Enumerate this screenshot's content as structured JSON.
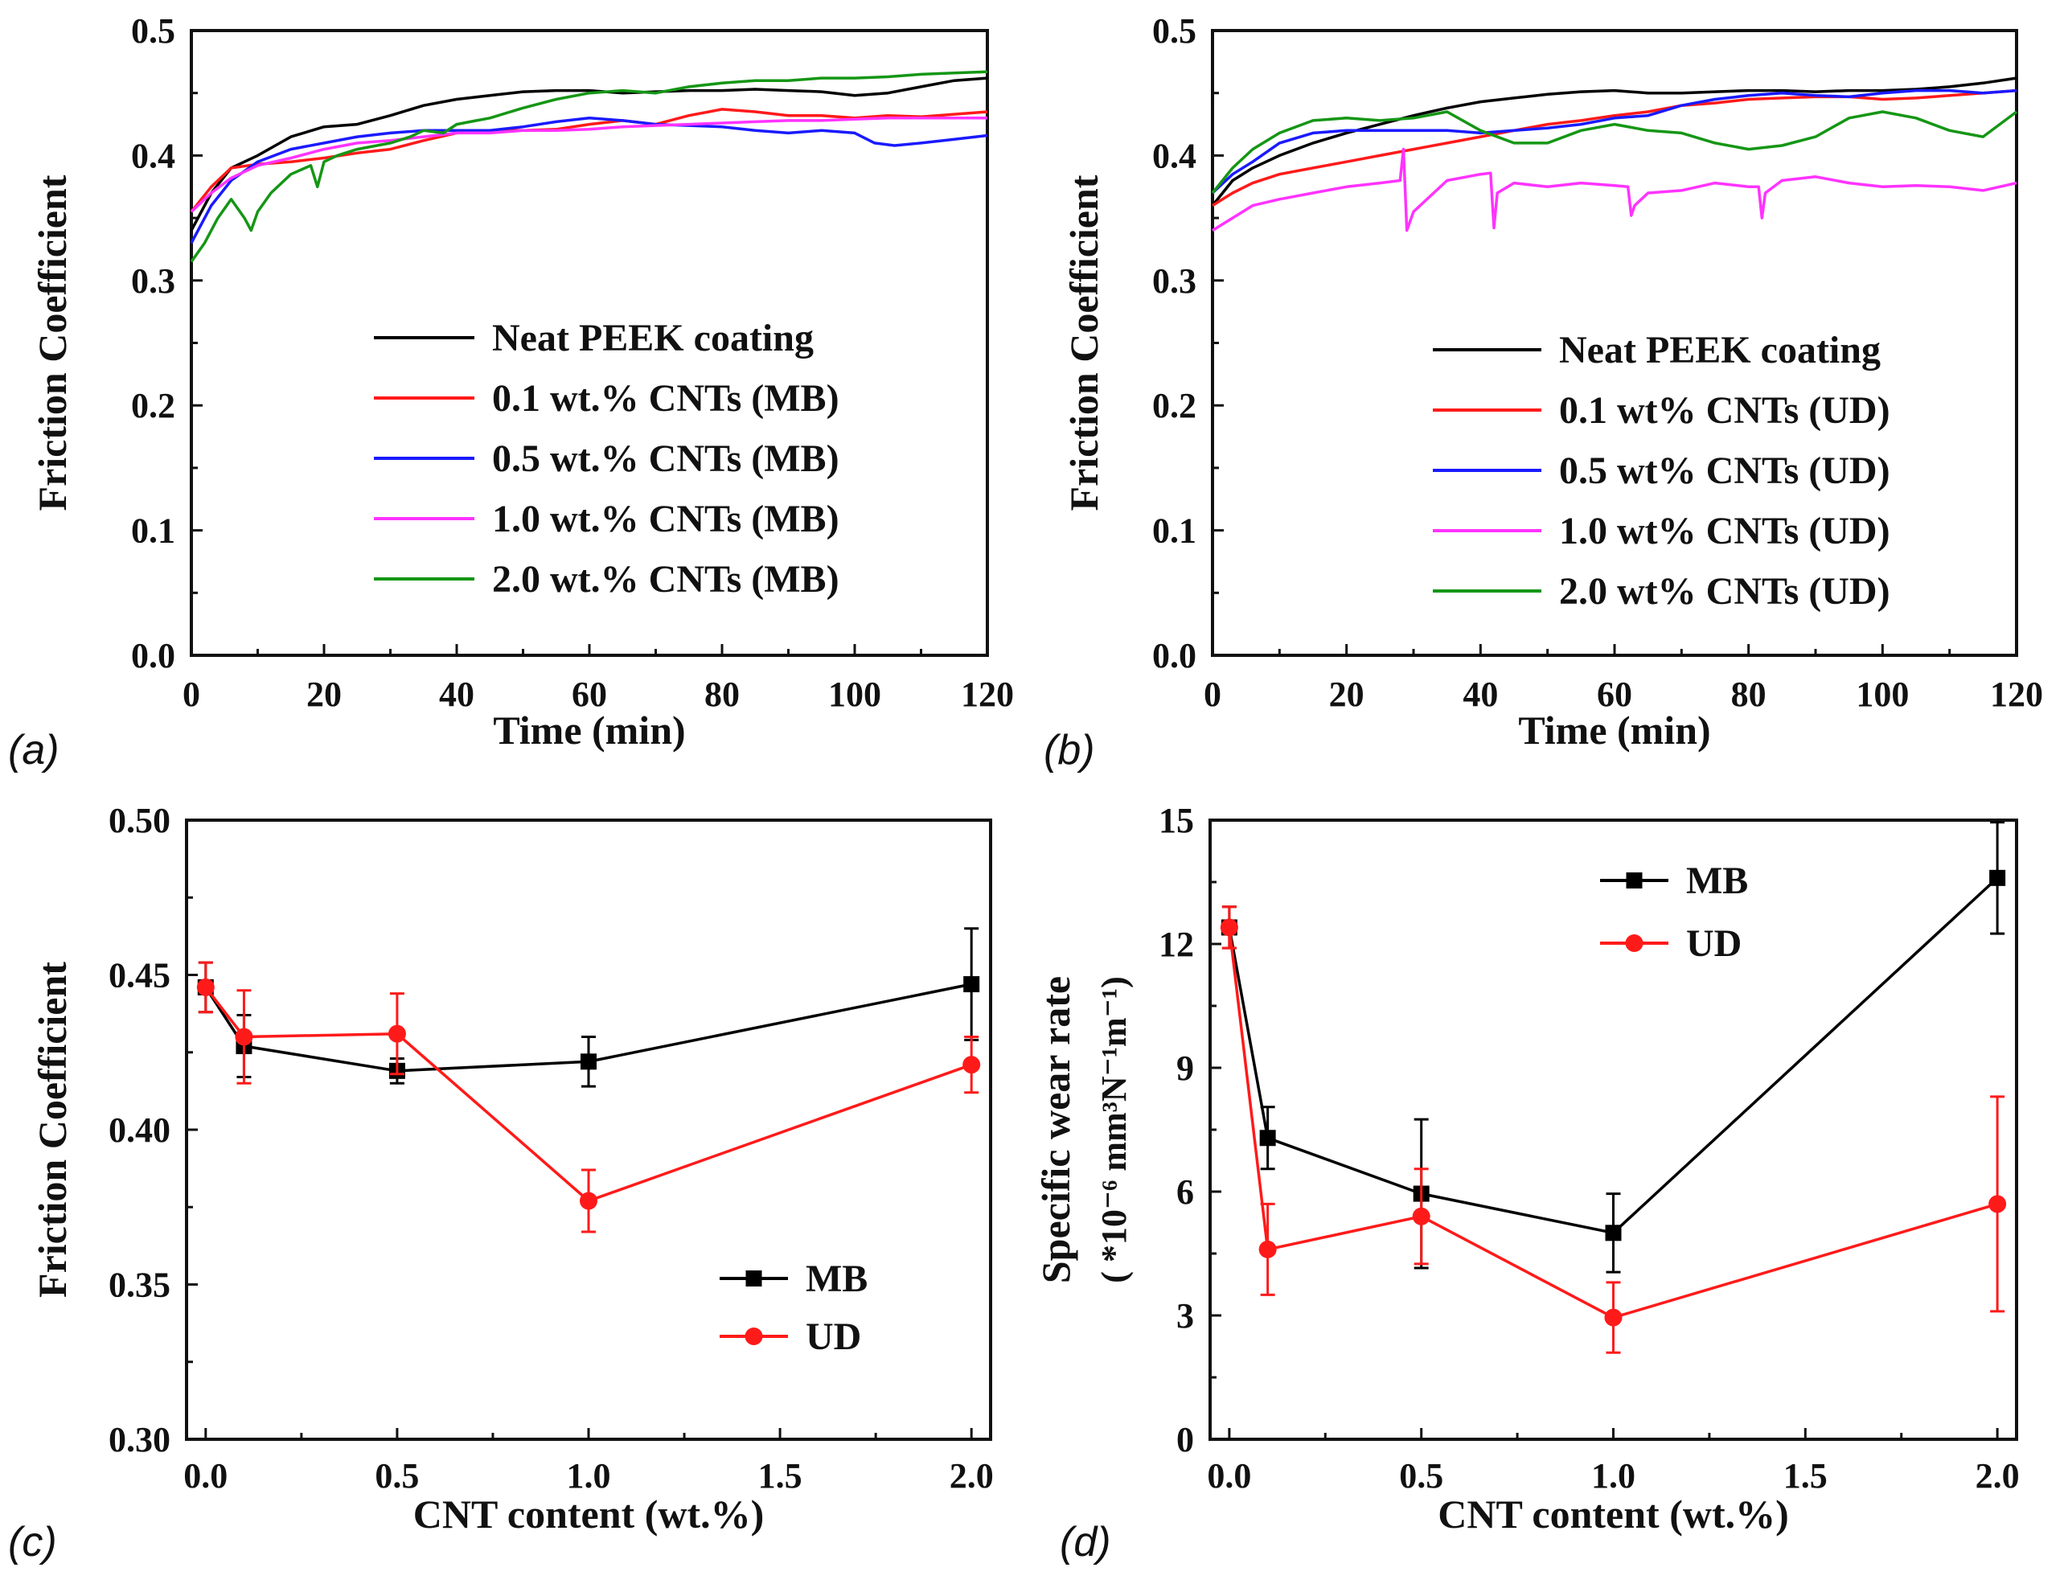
{
  "figure": {
    "panel_labels": [
      "(a)",
      "(b)",
      "(c)",
      "(d)"
    ]
  },
  "colors": {
    "black": "#000000",
    "red": "#ff1a1a",
    "blue": "#1a1aff",
    "magenta": "#ff33ff",
    "green": "#159615"
  },
  "chart_data": [
    {
      "id": "a",
      "type": "line",
      "panel_label": "(a)",
      "xlabel": "Time (min)",
      "ylabel": "Friction Coefficient",
      "xlim": [
        0,
        120
      ],
      "ylim": [
        0.0,
        0.5
      ],
      "xticks": [
        0,
        20,
        40,
        60,
        80,
        100,
        120
      ],
      "yticks": [
        "0.0",
        "0.1",
        "0.2",
        "0.3",
        "0.4",
        "0.5"
      ],
      "legend_position": "bottom-right",
      "series": [
        {
          "name": "Neat PEEK coating",
          "color": "black",
          "x": [
            0,
            3,
            6,
            10,
            15,
            20,
            25,
            30,
            35,
            40,
            45,
            50,
            55,
            60,
            65,
            70,
            75,
            80,
            85,
            90,
            95,
            100,
            105,
            110,
            115,
            120
          ],
          "y": [
            0.34,
            0.37,
            0.39,
            0.4,
            0.415,
            0.423,
            0.425,
            0.432,
            0.44,
            0.445,
            0.448,
            0.451,
            0.452,
            0.452,
            0.45,
            0.451,
            0.452,
            0.452,
            0.453,
            0.452,
            0.451,
            0.448,
            0.45,
            0.455,
            0.46,
            0.462
          ]
        },
        {
          "name": "0.1 wt.% CNTs (MB)",
          "color": "red",
          "x": [
            0,
            3,
            6,
            10,
            15,
            20,
            25,
            30,
            35,
            40,
            45,
            50,
            55,
            60,
            65,
            70,
            75,
            80,
            85,
            90,
            95,
            100,
            105,
            110,
            115,
            120
          ],
          "y": [
            0.355,
            0.375,
            0.39,
            0.393,
            0.395,
            0.398,
            0.402,
            0.405,
            0.412,
            0.418,
            0.42,
            0.42,
            0.421,
            0.425,
            0.428,
            0.425,
            0.432,
            0.437,
            0.435,
            0.432,
            0.432,
            0.43,
            0.432,
            0.431,
            0.433,
            0.435
          ]
        },
        {
          "name": "0.5 wt.% CNTs (MB)",
          "color": "blue",
          "x": [
            0,
            3,
            6,
            10,
            15,
            20,
            25,
            30,
            35,
            40,
            45,
            50,
            55,
            60,
            65,
            70,
            75,
            80,
            85,
            90,
            95,
            100,
            103,
            106,
            110,
            115,
            120
          ],
          "y": [
            0.33,
            0.36,
            0.38,
            0.395,
            0.405,
            0.41,
            0.415,
            0.418,
            0.42,
            0.42,
            0.42,
            0.423,
            0.427,
            0.43,
            0.428,
            0.425,
            0.424,
            0.423,
            0.42,
            0.418,
            0.42,
            0.418,
            0.41,
            0.408,
            0.41,
            0.413,
            0.416
          ]
        },
        {
          "name": "1.0 wt.% CNTs (MB)",
          "color": "magenta",
          "x": [
            0,
            3,
            6,
            10,
            15,
            20,
            25,
            30,
            35,
            40,
            45,
            50,
            55,
            60,
            65,
            70,
            75,
            80,
            85,
            90,
            95,
            100,
            105,
            110,
            115,
            120
          ],
          "y": [
            0.355,
            0.37,
            0.382,
            0.392,
            0.398,
            0.405,
            0.41,
            0.412,
            0.415,
            0.418,
            0.418,
            0.42,
            0.42,
            0.421,
            0.423,
            0.424,
            0.425,
            0.426,
            0.427,
            0.428,
            0.428,
            0.429,
            0.43,
            0.43,
            0.43,
            0.43
          ]
        },
        {
          "name": "2.0 wt.% CNTs (MB)",
          "color": "green",
          "x": [
            0,
            2,
            4,
            6,
            8,
            9,
            10,
            12,
            15,
            18,
            19,
            20,
            22,
            25,
            30,
            33,
            35,
            38,
            40,
            43,
            45,
            50,
            55,
            60,
            65,
            70,
            75,
            80,
            85,
            90,
            95,
            100,
            105,
            110,
            115,
            120
          ],
          "y": [
            0.315,
            0.33,
            0.35,
            0.365,
            0.35,
            0.34,
            0.355,
            0.37,
            0.385,
            0.392,
            0.375,
            0.395,
            0.4,
            0.405,
            0.41,
            0.415,
            0.42,
            0.418,
            0.425,
            0.428,
            0.43,
            0.438,
            0.445,
            0.45,
            0.452,
            0.45,
            0.455,
            0.458,
            0.46,
            0.46,
            0.462,
            0.462,
            0.463,
            0.465,
            0.466,
            0.467
          ]
        }
      ]
    },
    {
      "id": "b",
      "type": "line",
      "panel_label": "(b)",
      "xlabel": "Time (min)",
      "ylabel": "Friction Coefficient",
      "xlim": [
        0,
        120
      ],
      "ylim": [
        0.0,
        0.5
      ],
      "xticks": [
        0,
        20,
        40,
        60,
        80,
        100,
        120
      ],
      "yticks": [
        "0.0",
        "0.1",
        "0.2",
        "0.3",
        "0.4",
        "0.5"
      ],
      "legend_position": "bottom-right",
      "series": [
        {
          "name": "Neat PEEK coating",
          "color": "black",
          "x": [
            0,
            3,
            6,
            10,
            15,
            20,
            25,
            30,
            35,
            40,
            45,
            50,
            55,
            60,
            65,
            70,
            75,
            80,
            85,
            90,
            95,
            100,
            105,
            110,
            115,
            120
          ],
          "y": [
            0.36,
            0.38,
            0.39,
            0.4,
            0.41,
            0.418,
            0.425,
            0.432,
            0.438,
            0.443,
            0.446,
            0.449,
            0.451,
            0.452,
            0.45,
            0.45,
            0.451,
            0.452,
            0.452,
            0.451,
            0.452,
            0.452,
            0.453,
            0.455,
            0.458,
            0.462
          ]
        },
        {
          "name": "0.1 wt% CNTs (UD)",
          "color": "red",
          "x": [
            0,
            3,
            6,
            10,
            15,
            20,
            25,
            30,
            35,
            40,
            45,
            50,
            55,
            60,
            65,
            70,
            75,
            80,
            85,
            90,
            95,
            100,
            105,
            110,
            115,
            120
          ],
          "y": [
            0.36,
            0.37,
            0.378,
            0.385,
            0.39,
            0.395,
            0.4,
            0.405,
            0.41,
            0.415,
            0.42,
            0.425,
            0.428,
            0.432,
            0.435,
            0.44,
            0.442,
            0.445,
            0.446,
            0.447,
            0.447,
            0.445,
            0.446,
            0.448,
            0.45,
            0.452
          ]
        },
        {
          "name": "0.5 wt% CNTs (UD)",
          "color": "blue",
          "x": [
            0,
            3,
            6,
            10,
            15,
            20,
            25,
            30,
            35,
            40,
            45,
            50,
            55,
            60,
            65,
            70,
            75,
            80,
            85,
            90,
            95,
            100,
            105,
            110,
            115,
            120
          ],
          "y": [
            0.37,
            0.385,
            0.395,
            0.41,
            0.418,
            0.42,
            0.42,
            0.42,
            0.42,
            0.418,
            0.42,
            0.422,
            0.425,
            0.43,
            0.432,
            0.44,
            0.445,
            0.448,
            0.45,
            0.448,
            0.447,
            0.45,
            0.452,
            0.452,
            0.45,
            0.452
          ]
        },
        {
          "name": "1.0 wt% CNTs (UD)",
          "color": "magenta",
          "x": [
            0,
            3,
            6,
            10,
            15,
            20,
            25,
            28,
            28.5,
            29,
            30,
            35,
            40,
            41.5,
            42,
            42.5,
            45,
            50,
            55,
            60,
            62,
            62.5,
            63,
            65,
            70,
            75,
            80,
            81.5,
            82,
            82.5,
            85,
            90,
            95,
            100,
            105,
            110,
            115,
            120
          ],
          "y": [
            0.34,
            0.35,
            0.36,
            0.365,
            0.37,
            0.375,
            0.378,
            0.38,
            0.405,
            0.34,
            0.355,
            0.38,
            0.385,
            0.386,
            0.342,
            0.37,
            0.378,
            0.375,
            0.378,
            0.376,
            0.375,
            0.352,
            0.36,
            0.37,
            0.372,
            0.378,
            0.375,
            0.375,
            0.35,
            0.37,
            0.38,
            0.383,
            0.378,
            0.375,
            0.376,
            0.375,
            0.372,
            0.378
          ]
        },
        {
          "name": "2.0 wt% CNTs (UD)",
          "color": "green",
          "x": [
            0,
            3,
            6,
            10,
            15,
            20,
            25,
            30,
            35,
            40,
            45,
            50,
            55,
            60,
            65,
            70,
            75,
            80,
            85,
            90,
            95,
            100,
            105,
            110,
            115,
            120
          ],
          "y": [
            0.37,
            0.39,
            0.405,
            0.418,
            0.428,
            0.43,
            0.428,
            0.43,
            0.435,
            0.42,
            0.41,
            0.41,
            0.42,
            0.425,
            0.42,
            0.418,
            0.41,
            0.405,
            0.408,
            0.415,
            0.43,
            0.435,
            0.43,
            0.42,
            0.415,
            0.435
          ]
        }
      ]
    },
    {
      "id": "c",
      "type": "line",
      "panel_label": "(c)",
      "xlabel": "CNT content (wt.%)",
      "ylabel": "Friction Coefficient",
      "xlim": [
        -0.05,
        2.05
      ],
      "ylim": [
        0.3,
        0.5
      ],
      "xticks": [
        "0.0",
        "0.5",
        "1.0",
        "1.5",
        "2.0"
      ],
      "yticks": [
        "0.30",
        "0.35",
        "0.40",
        "0.45",
        "0.50"
      ],
      "legend_position": "bottom-right",
      "series": [
        {
          "name": "MB",
          "color": "black",
          "marker": "square",
          "x": [
            0.0,
            0.1,
            0.5,
            1.0,
            2.0
          ],
          "y": [
            0.446,
            0.427,
            0.419,
            0.422,
            0.447
          ],
          "err": [
            0.008,
            0.01,
            0.004,
            0.008,
            0.018
          ]
        },
        {
          "name": "UD",
          "color": "red",
          "marker": "circle",
          "x": [
            0.0,
            0.1,
            0.5,
            1.0,
            2.0
          ],
          "y": [
            0.446,
            0.43,
            0.431,
            0.377,
            0.421
          ],
          "err": [
            0.008,
            0.015,
            0.013,
            0.01,
            0.009
          ]
        }
      ]
    },
    {
      "id": "d",
      "type": "line",
      "panel_label": "(d)",
      "xlabel": "CNT content (wt.%)",
      "ylabel": "Specific wear rate",
      "ylabel_unit": "( *10⁻⁶ mm³N⁻¹m⁻¹)",
      "xlim": [
        -0.05,
        2.05
      ],
      "ylim": [
        0,
        15
      ],
      "xticks": [
        "0.0",
        "0.5",
        "1.0",
        "1.5",
        "2.0"
      ],
      "yticks": [
        "0",
        "3",
        "6",
        "9",
        "12",
        "15"
      ],
      "legend_position": "top-center",
      "series": [
        {
          "name": "MB",
          "color": "black",
          "marker": "square",
          "x": [
            0.0,
            0.1,
            0.5,
            1.0,
            2.0
          ],
          "y": [
            12.4,
            7.3,
            5.95,
            5.0,
            13.6
          ],
          "err": [
            0.5,
            0.75,
            1.8,
            0.95,
            1.35
          ]
        },
        {
          "name": "UD",
          "color": "red",
          "marker": "circle",
          "x": [
            0.0,
            0.1,
            0.5,
            1.0,
            2.0
          ],
          "y": [
            12.4,
            4.6,
            5.4,
            2.95,
            5.7
          ],
          "err": [
            0.5,
            1.1,
            1.15,
            0.85,
            2.6
          ]
        }
      ]
    }
  ]
}
